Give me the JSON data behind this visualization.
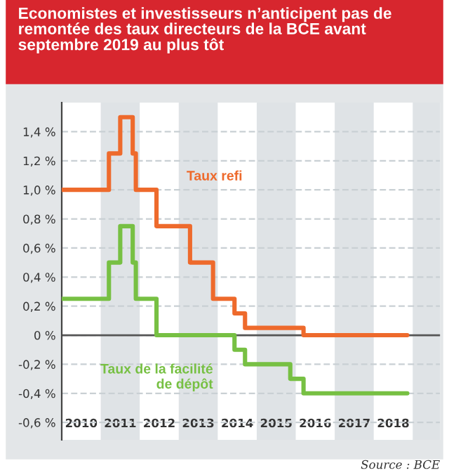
{
  "chart_data": {
    "type": "step",
    "title": "Economistes et investisseurs n’anticipent pas de remontée des taux directeurs de la BCE avant septembre 2019 au plus tôt",
    "xlim": [
      2010,
      2019.7
    ],
    "ylim": [
      -0.72,
      1.6
    ],
    "xticks": [
      {
        "value": 2010.5,
        "label": "2010"
      },
      {
        "value": 2011.5,
        "label": "2011"
      },
      {
        "value": 2012.5,
        "label": "2012"
      },
      {
        "value": 2013.5,
        "label": "2013"
      },
      {
        "value": 2014.5,
        "label": "2014"
      },
      {
        "value": 2015.5,
        "label": "2015"
      },
      {
        "value": 2016.5,
        "label": "2016"
      },
      {
        "value": 2017.5,
        "label": "2017"
      },
      {
        "value": 2018.5,
        "label": "2018"
      }
    ],
    "yticks": [
      {
        "value": -0.6,
        "label": "-0,6 %"
      },
      {
        "value": -0.4,
        "label": "-0,4 %"
      },
      {
        "value": -0.2,
        "label": "-0,2 %"
      },
      {
        "value": 0,
        "label": "0 %"
      },
      {
        "value": 0.2,
        "label": "0,2 %"
      },
      {
        "value": 0.4,
        "label": "0,4 %"
      },
      {
        "value": 0.6,
        "label": "0,6 %"
      },
      {
        "value": 0.8,
        "label": "0,8 %"
      },
      {
        "value": 1.0,
        "label": "1,0 %"
      },
      {
        "value": 1.2,
        "label": "1,2 %"
      },
      {
        "value": 1.4,
        "label": "1,4 %"
      }
    ],
    "grid": "y",
    "series": [
      {
        "name": "Taux refi",
        "color": "#ee6a2c",
        "x": [
          2010,
          2011.21,
          2011.5,
          2011.82,
          2011.9,
          2012.43,
          2013.29,
          2013.88,
          2014.43,
          2014.7,
          2016.2,
          2018.86
        ],
        "values": [
          1.0,
          1.25,
          1.5,
          1.25,
          1.0,
          0.75,
          0.5,
          0.25,
          0.15,
          0.05,
          0.0,
          0.0
        ]
      },
      {
        "name": "Taux de la facilité\nde dépôt",
        "color": "#77c043",
        "x": [
          2010,
          2011.21,
          2011.5,
          2011.82,
          2011.9,
          2012.43,
          2014.43,
          2014.7,
          2015.86,
          2016.2,
          2018.86
        ],
        "values": [
          0.25,
          0.5,
          0.75,
          0.5,
          0.25,
          0.0,
          -0.1,
          -0.2,
          -0.3,
          -0.4,
          -0.4
        ]
      }
    ],
    "ref_lines": [
      {
        "axis": "y",
        "value": 0,
        "color": "#555555"
      }
    ],
    "bands": [
      {
        "axis": "x",
        "from": 2011,
        "to": 2012,
        "color": "#dfe3e6"
      },
      {
        "axis": "x",
        "from": 2013,
        "to": 2014,
        "color": "#dfe3e6"
      },
      {
        "axis": "x",
        "from": 2015,
        "to": 2016,
        "color": "#dfe3e6"
      },
      {
        "axis": "x",
        "from": 2017,
        "to": 2018,
        "color": "#dfe3e6"
      },
      {
        "axis": "x",
        "from": 2019,
        "to": 2019.7,
        "color": "#dfe3e6"
      }
    ],
    "annotations": [
      "Source : BCE"
    ]
  }
}
